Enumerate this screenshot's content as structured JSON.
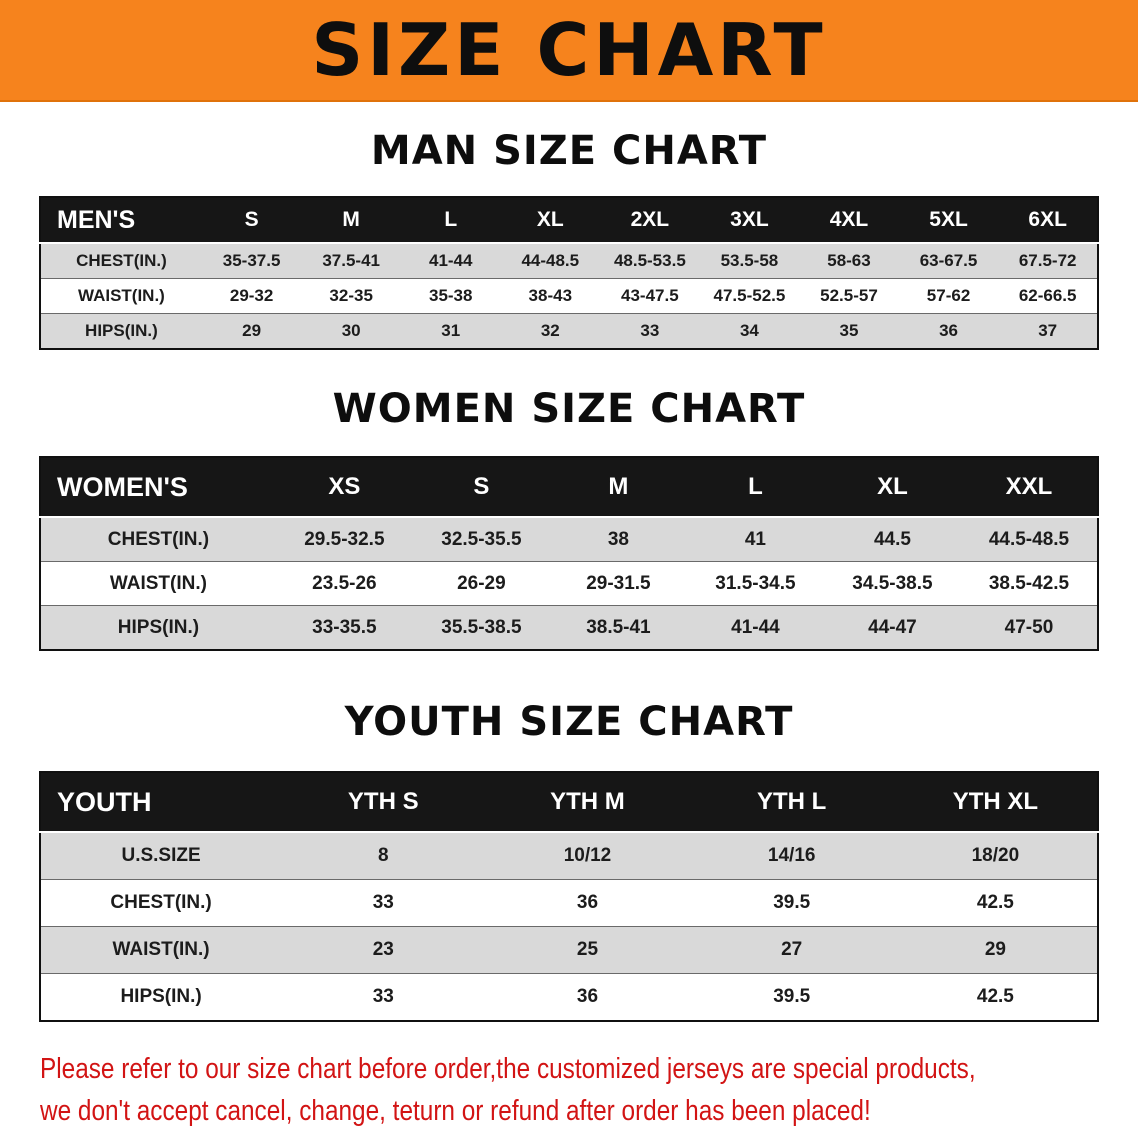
{
  "banner": {
    "title": "SIZE CHART"
  },
  "sections": [
    {
      "title": "MAN SIZE CHART",
      "table": {
        "header": [
          "MEN'S",
          "S",
          "M",
          "L",
          "XL",
          "2XL",
          "3XL",
          "4XL",
          "5XL",
          "6XL"
        ],
        "rows": [
          {
            "label": "CHEST(IN.)",
            "values": [
              "35-37.5",
              "37.5-41",
              "41-44",
              "44-48.5",
              "48.5-53.5",
              "53.5-58",
              "58-63",
              "63-67.5",
              "67.5-72"
            ]
          },
          {
            "label": "WAIST(IN.)",
            "values": [
              "29-32",
              "32-35",
              "35-38",
              "38-43",
              "43-47.5",
              "47.5-52.5",
              "52.5-57",
              "57-62",
              "62-66.5"
            ]
          },
          {
            "label": "HIPS(IN.)",
            "values": [
              "29",
              "30",
              "31",
              "32",
              "33",
              "34",
              "35",
              "36",
              "37"
            ]
          }
        ]
      }
    },
    {
      "title": "WOMEN SIZE CHART",
      "table": {
        "header": [
          "WOMEN'S",
          "XS",
          "S",
          "M",
          "L",
          "XL",
          "XXL"
        ],
        "rows": [
          {
            "label": "CHEST(IN.)",
            "values": [
              "29.5-32.5",
              "32.5-35.5",
              "38",
              "41",
              "44.5",
              "44.5-48.5"
            ]
          },
          {
            "label": "WAIST(IN.)",
            "values": [
              "23.5-26",
              "26-29",
              "29-31.5",
              "31.5-34.5",
              "34.5-38.5",
              "38.5-42.5"
            ]
          },
          {
            "label": "HIPS(IN.)",
            "values": [
              "33-35.5",
              "35.5-38.5",
              "38.5-41",
              "41-44",
              "44-47",
              "47-50"
            ]
          }
        ]
      }
    },
    {
      "title": "YOUTH SIZE CHART",
      "table": {
        "header": [
          "YOUTH",
          "YTH S",
          "YTH M",
          "YTH L",
          "YTH XL"
        ],
        "rows": [
          {
            "label": "U.S.SIZE",
            "values": [
              "8",
              "10/12",
              "14/16",
              "18/20"
            ]
          },
          {
            "label": "CHEST(IN.)",
            "values": [
              "33",
              "36",
              "39.5",
              "42.5"
            ]
          },
          {
            "label": "WAIST(IN.)",
            "values": [
              "23",
              "25",
              "27",
              "29"
            ]
          },
          {
            "label": "HIPS(IN.)",
            "values": [
              "33",
              "36",
              "39.5",
              "42.5"
            ]
          }
        ]
      }
    }
  ],
  "footer": {
    "line1": "Please refer to our size chart before order,the customized jerseys are special products,",
    "line2": "we don't accept cancel, change, teturn or refund after order has been placed!"
  },
  "colors": {
    "banner_orange": "#f6831d",
    "header_black": "#161616",
    "row_shade_gray": "#d9d9d9",
    "notice_red": "#d21414"
  }
}
